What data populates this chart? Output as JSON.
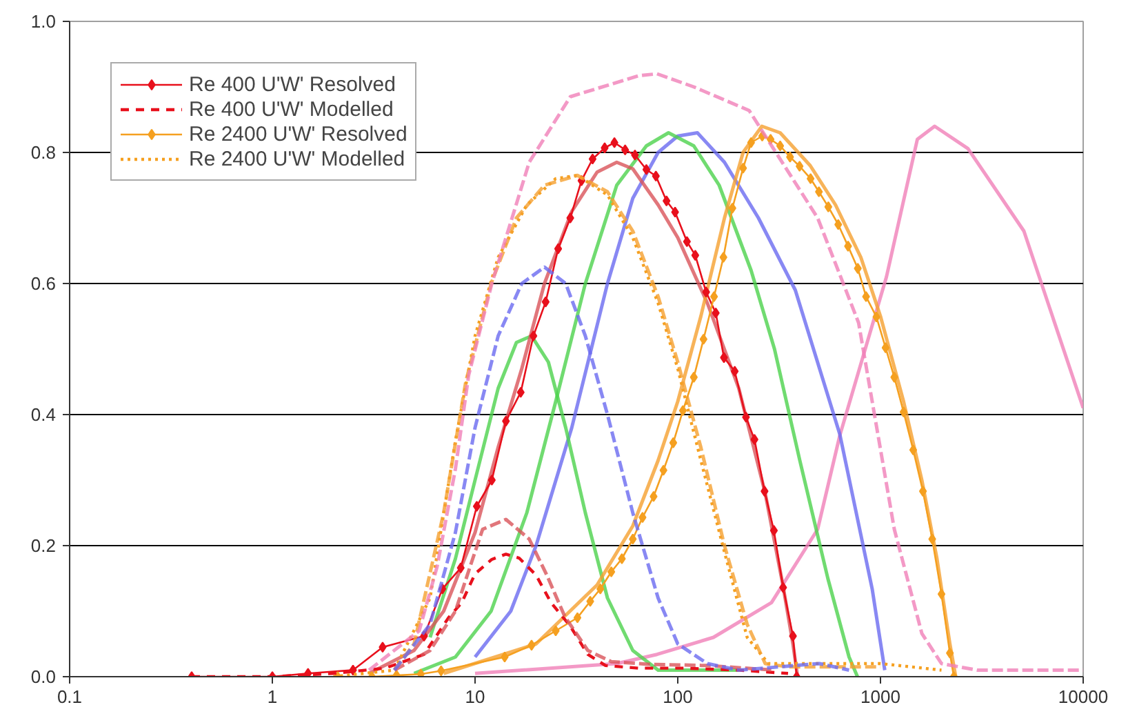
{
  "chart_data": {
    "type": "line",
    "log": "x",
    "xlim": [
      0.1,
      10000
    ],
    "xticks": [
      0.1,
      1,
      10,
      100,
      1000,
      10000
    ],
    "ylim": [
      0,
      1
    ],
    "yticks": [
      {
        "value": 0,
        "label": "0.0"
      },
      {
        "value": 0.2,
        "label": "0.2"
      },
      {
        "value": 0.4,
        "label": "0.4"
      },
      {
        "value": 0.6,
        "label": "0.6"
      },
      {
        "value": 0.8,
        "label": "0.8"
      },
      {
        "value": 1,
        "label": "1.0"
      }
    ],
    "grid": "y",
    "legend": "top left",
    "series": [
      {
        "color": "#f080b8",
        "line_style": "dashed",
        "x": [
          3,
          5.3,
          6.5,
          8,
          9.3,
          12.1,
          18.5,
          29.5,
          64,
          79,
          120,
          225,
          490,
          780,
          1170,
          1600,
          2000,
          3000,
          10000
        ],
        "values": [
          0.01,
          0.07,
          0.168,
          0.317,
          0.46,
          0.6,
          0.785,
          0.885,
          0.917,
          0.92,
          0.9,
          0.864,
          0.7,
          0.54,
          0.225,
          0.066,
          0.02,
          0.01,
          0.01
        ]
      },
      {
        "color": "#f080b8",
        "line_style": "solid",
        "x": [
          10,
          50,
          79,
          150,
          290,
          490,
          630,
          1070,
          1520,
          1850,
          2700,
          5100,
          10000
        ],
        "values": [
          0.005,
          0.02,
          0.034,
          0.06,
          0.113,
          0.225,
          0.368,
          0.61,
          0.82,
          0.84,
          0.806,
          0.68,
          0.41
        ]
      },
      {
        "color": "#6a6af0",
        "line_style": "dashed",
        "x": [
          4,
          6,
          8,
          10,
          13,
          17,
          22,
          28,
          35,
          45,
          60,
          80,
          100,
          140,
          200,
          500,
          700
        ],
        "values": [
          0.01,
          0.08,
          0.22,
          0.38,
          0.52,
          0.6,
          0.625,
          0.6,
          0.52,
          0.4,
          0.25,
          0.12,
          0.05,
          0.02,
          0.01,
          0.02,
          0.01
        ]
      },
      {
        "color": "#6a6af0",
        "line_style": "solid",
        "x": [
          10,
          15,
          20,
          30,
          45,
          60,
          80,
          100,
          125,
          170,
          250,
          380,
          630,
          910,
          1050
        ],
        "values": [
          0.03,
          0.1,
          0.2,
          0.38,
          0.6,
          0.73,
          0.8,
          0.825,
          0.83,
          0.785,
          0.7,
          0.59,
          0.37,
          0.134,
          0.01
        ]
      },
      {
        "color": "#4cd24c",
        "line_style": "solid",
        "x": [
          6,
          8,
          10,
          13,
          16,
          19,
          23,
          28,
          35,
          45,
          60,
          80,
          200
        ],
        "values": [
          0.06,
          0.18,
          0.3,
          0.44,
          0.51,
          0.52,
          0.48,
          0.38,
          0.25,
          0.12,
          0.04,
          0.01,
          0.01
        ]
      },
      {
        "color": "#4cd24c",
        "line_style": "solid",
        "x": [
          5,
          8,
          12,
          18,
          25,
          35,
          50,
          70,
          90,
          120,
          160,
          230,
          300,
          400,
          550,
          700,
          770
        ],
        "values": [
          0.005,
          0.03,
          0.1,
          0.25,
          0.42,
          0.6,
          0.75,
          0.81,
          0.83,
          0.81,
          0.75,
          0.62,
          0.5,
          0.33,
          0.15,
          0.03,
          0
        ]
      },
      {
        "color": "#d9545a",
        "line_style": "solid",
        "x": [
          3,
          5,
          7,
          10,
          13,
          17,
          22,
          30,
          40,
          50,
          60,
          80,
          100,
          140,
          200,
          270,
          330,
          370,
          390
        ],
        "values": [
          0.005,
          0.04,
          0.1,
          0.22,
          0.35,
          0.47,
          0.6,
          0.71,
          0.77,
          0.785,
          0.775,
          0.72,
          0.67,
          0.57,
          0.44,
          0.28,
          0.14,
          0.05,
          0
        ]
      },
      {
        "color": "#d9545a",
        "line_style": "dashed",
        "x": [
          4,
          6,
          8,
          9.5,
          10.9,
          14.2,
          18.5,
          22.6,
          27.7,
          36,
          47,
          71,
          140,
          300
        ],
        "values": [
          0.01,
          0.04,
          0.1,
          0.17,
          0.225,
          0.24,
          0.21,
          0.155,
          0.092,
          0.04,
          0.023,
          0.019,
          0.017,
          0.01
        ]
      },
      {
        "color": "#f5a030",
        "line_style": "dashed",
        "x": [
          4,
          5,
          7,
          9,
          12,
          16,
          22,
          32,
          45,
          60,
          80,
          100,
          130,
          170,
          220,
          270,
          350,
          1000
        ],
        "values": [
          0.01,
          0.05,
          0.25,
          0.45,
          0.6,
          0.7,
          0.75,
          0.765,
          0.74,
          0.68,
          0.58,
          0.48,
          0.35,
          0.2,
          0.08,
          0.02,
          0.015,
          0.015
        ]
      },
      {
        "color": "#f5a030",
        "line_style": "solid",
        "x": [
          7,
          20,
          40,
          60,
          80,
          100,
          130,
          170,
          210,
          260,
          320,
          450,
          600,
          800,
          1000,
          1300,
          1600,
          1900,
          2200,
          2350
        ],
        "values": [
          0.005,
          0.05,
          0.14,
          0.23,
          0.33,
          0.42,
          0.55,
          0.7,
          0.8,
          0.84,
          0.83,
          0.78,
          0.72,
          0.64,
          0.55,
          0.42,
          0.3,
          0.18,
          0.05,
          0
        ]
      },
      {
        "name": "Re 400 U'W' Resolved",
        "color": "#e8101c",
        "line_style": "solid",
        "marker": "diamond",
        "x": [
          0.4,
          1,
          1.5,
          2.5,
          3.5,
          5.6,
          6.9,
          8.5,
          10.2,
          12.1,
          14.2,
          16.8,
          19.4,
          22.3,
          25.7,
          29.5,
          33.5,
          38,
          43.6,
          48.7,
          55,
          61.5,
          70,
          78,
          88,
          97,
          111,
          122,
          138,
          154,
          169,
          191,
          217,
          239,
          268,
          298,
          331,
          370,
          386
        ],
        "values": [
          0,
          0,
          0.005,
          0.01,
          0.045,
          0.062,
          0.134,
          0.166,
          0.26,
          0.3,
          0.39,
          0.434,
          0.52,
          0.572,
          0.653,
          0.7,
          0.757,
          0.79,
          0.807,
          0.815,
          0.804,
          0.796,
          0.774,
          0.764,
          0.726,
          0.709,
          0.664,
          0.643,
          0.587,
          0.555,
          0.487,
          0.466,
          0.396,
          0.362,
          0.283,
          0.223,
          0.136,
          0.062,
          0
        ]
      },
      {
        "name": "Re 400 U'W' Modelled",
        "color": "#e8101c",
        "line_style": "dashed",
        "x": [
          0.4,
          1,
          2,
          3.6,
          5.6,
          7.4,
          8.6,
          10,
          12.1,
          14.2,
          16.5,
          20,
          23.7,
          29.5,
          36,
          44,
          64,
          108,
          200,
          350
        ],
        "values": [
          0,
          0,
          0.005,
          0.013,
          0.034,
          0.09,
          0.113,
          0.157,
          0.179,
          0.187,
          0.181,
          0.155,
          0.113,
          0.077,
          0.034,
          0.017,
          0.013,
          0.013,
          0.01,
          0.005
        ]
      },
      {
        "name": "Re 2400 U'W' Resolved",
        "color": "#f5a020",
        "line_style": "solid",
        "marker": "diamond",
        "x": [
          2.1,
          3.1,
          4.1,
          5.4,
          6.8,
          14,
          19,
          25,
          32,
          37,
          41.5,
          47,
          53,
          60,
          67,
          76,
          85,
          95,
          106,
          120,
          134,
          151,
          168,
          186,
          210,
          230,
          261,
          287,
          320,
          358,
          399,
          452,
          497,
          553,
          619,
          692,
          773,
          849,
          955,
          1060,
          1170,
          1300,
          1450,
          1620,
          1800,
          2000,
          2200,
          2300
        ],
        "values": [
          0,
          0,
          0.002,
          0.004,
          0.009,
          0.03,
          0.048,
          0.07,
          0.09,
          0.115,
          0.134,
          0.16,
          0.18,
          0.21,
          0.243,
          0.275,
          0.315,
          0.357,
          0.406,
          0.457,
          0.515,
          0.58,
          0.64,
          0.715,
          0.776,
          0.815,
          0.825,
          0.82,
          0.81,
          0.793,
          0.779,
          0.76,
          0.74,
          0.717,
          0.69,
          0.657,
          0.623,
          0.58,
          0.549,
          0.502,
          0.457,
          0.404,
          0.346,
          0.283,
          0.21,
          0.126,
          0.036,
          0
        ]
      },
      {
        "name": "Re 2400 U'W' Modelled",
        "color": "#f5a020",
        "line_style": "dotted",
        "x": [
          2,
          4,
          6,
          8,
          10,
          13,
          18,
          25,
          32,
          45,
          60,
          80,
          100,
          130,
          170,
          220,
          280,
          1000,
          2000
        ],
        "values": [
          0,
          0.01,
          0.12,
          0.36,
          0.52,
          0.64,
          0.72,
          0.76,
          0.765,
          0.735,
          0.67,
          0.57,
          0.47,
          0.33,
          0.19,
          0.06,
          0.02,
          0.02,
          0.01
        ]
      }
    ]
  }
}
